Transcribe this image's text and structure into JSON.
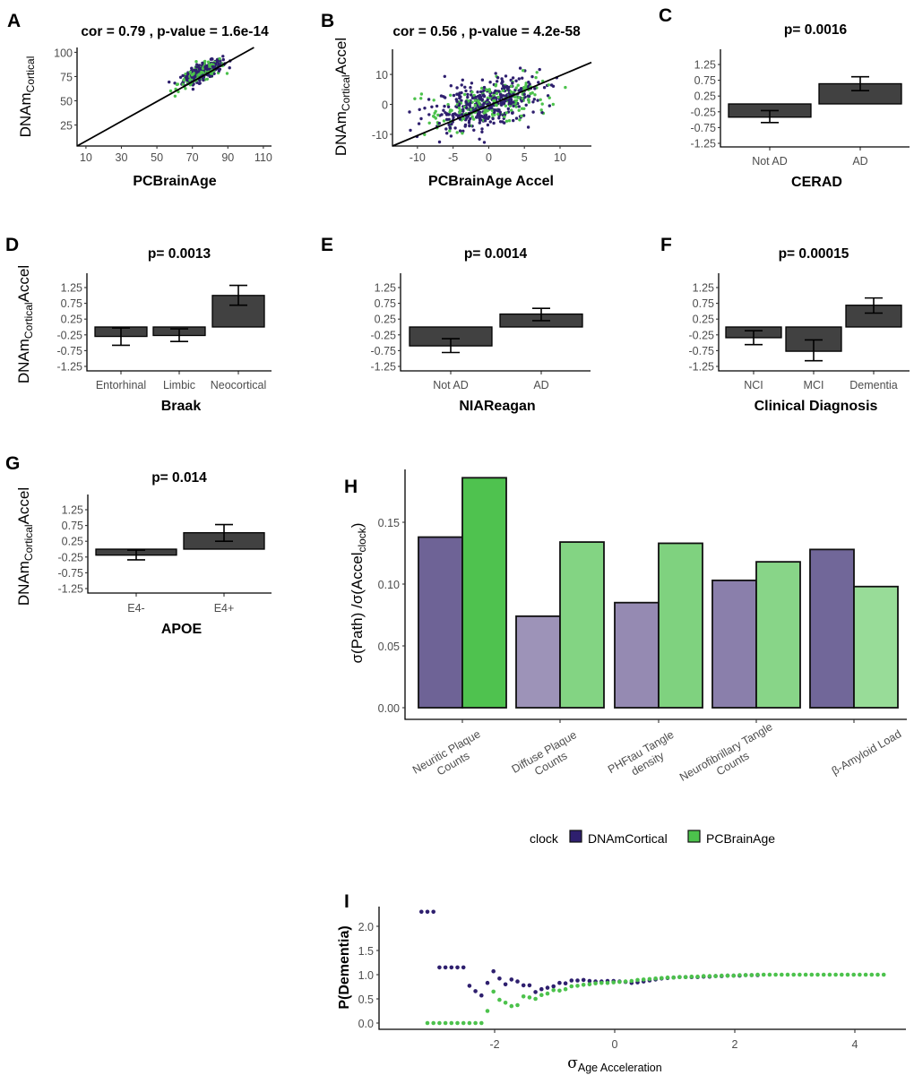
{
  "chart_data": [
    {
      "panel": "A",
      "type": "scatter",
      "title": "cor = 0.79 , p-value =  1.6e-14",
      "xlabel": "PCBrainAge",
      "ylabel": {
        "main": "DNAm",
        "sub": "Cortical",
        "suffix": ""
      },
      "xlim": [
        5,
        114.6
      ],
      "ylim": [
        3.3,
        105
      ],
      "xticks": [
        10,
        30,
        50,
        70,
        90,
        110
      ],
      "yticks": [
        25,
        50,
        75,
        100
      ],
      "fit_line": {
        "slope": 1.02,
        "intercept": -1.8
      },
      "series": [
        {
          "name": "DNAmCortical",
          "color": "#2e1f6e",
          "n": 300,
          "x_mean": 76,
          "x_sd": 5.5,
          "y_slope": 0.8,
          "y_center": 80,
          "y_noise_sd": 4
        },
        {
          "name": "PCBrainAge",
          "color": "#4cc24c",
          "n": 150,
          "x_mean": 75,
          "x_sd": 6.5,
          "y_slope": 0.8,
          "y_center": 78,
          "y_noise_sd": 4.5
        }
      ]
    },
    {
      "panel": "B",
      "type": "scatter",
      "title": "cor = 0.56 , p-value =  4.2e-58",
      "xlabel": "PCBrainAge Accel",
      "ylabel": {
        "main": "DNAm",
        "sub": "Cortical",
        "suffix": "Accel"
      },
      "xlim": [
        -13.5,
        14.4
      ],
      "ylim": [
        -13.9,
        18.4
      ],
      "xticks": [
        -10,
        -5,
        0,
        5,
        10
      ],
      "yticks": [
        -10,
        0,
        10
      ],
      "fit_line": {
        "slope": 1.0,
        "intercept": -0.4
      },
      "series": [
        {
          "name": "DNAmCortical",
          "color": "#2e1f6e",
          "n": 380,
          "x_mean": 0,
          "x_sd": 4,
          "y_slope": 0.65,
          "y_center": 0,
          "y_noise_sd": 3.8
        },
        {
          "name": "PCBrainAge",
          "color": "#4cc24c",
          "n": 190,
          "x_mean": 0,
          "x_sd": 4.5,
          "y_slope": 0.55,
          "y_center": 0,
          "y_noise_sd": 3.5
        }
      ]
    },
    {
      "panel": "C",
      "type": "bar",
      "title": "p= 0.0016",
      "xlabel": "CERAD",
      "categories": [
        "Not AD",
        "AD"
      ],
      "values": [
        -0.42,
        0.64
      ],
      "err_low": [
        -0.59,
        0.42
      ],
      "err_high": [
        -0.21,
        0.86
      ],
      "yticks": [
        1.25,
        0.75,
        0.25,
        -0.25,
        -0.75,
        -1.25
      ]
    },
    {
      "panel": "D",
      "type": "bar",
      "title": "p= 0.0013",
      "xlabel": "Braak",
      "ylabel": {
        "main": "DNAm",
        "sub": "Cortical",
        "suffix": "Accel"
      },
      "categories": [
        "Entorhinal",
        "Limbic",
        "Neocortical"
      ],
      "values": [
        -0.3,
        -0.27,
        1.0
      ],
      "err_low": [
        -0.58,
        -0.46,
        0.69
      ],
      "err_high": [
        -0.03,
        -0.06,
        1.32
      ],
      "yticks": [
        1.25,
        0.75,
        0.25,
        -0.25,
        -0.75,
        -1.25
      ]
    },
    {
      "panel": "E",
      "type": "bar",
      "title": "p= 0.0014",
      "xlabel": "NIAReagan",
      "categories": [
        "Not AD",
        "AD"
      ],
      "values": [
        -0.6,
        0.41
      ],
      "err_low": [
        -0.81,
        0.2
      ],
      "err_high": [
        -0.37,
        0.59
      ],
      "yticks": [
        1.25,
        0.75,
        0.25,
        -0.25,
        -0.75,
        -1.25
      ]
    },
    {
      "panel": "F",
      "type": "bar",
      "title": "p= 0.00015",
      "xlabel": "Clinical Diagnosis",
      "categories": [
        "NCI",
        "MCI",
        "Dementia"
      ],
      "values": [
        -0.34,
        -0.77,
        0.69
      ],
      "err_low": [
        -0.56,
        -1.07,
        0.44
      ],
      "err_high": [
        -0.12,
        -0.41,
        0.92
      ],
      "yticks": [
        1.25,
        0.75,
        0.25,
        -0.25,
        -0.75,
        -1.25
      ]
    },
    {
      "panel": "G",
      "type": "bar",
      "title": "p= 0.014",
      "xlabel": "APOE",
      "ylabel": {
        "main": "DNAm",
        "sub": "Cortical",
        "suffix": "Accel"
      },
      "categories": [
        "E4-",
        "E4+"
      ],
      "values": [
        -0.19,
        0.52
      ],
      "err_low": [
        -0.34,
        0.25
      ],
      "err_high": [
        -0.03,
        0.78
      ],
      "yticks": [
        1.25,
        0.75,
        0.25,
        -0.25,
        -0.75,
        -1.25
      ]
    },
    {
      "panel": "H",
      "type": "bar",
      "ylabel": {
        "main": "σ(Path) /σ(Accel",
        "sub": "clock",
        "suffix": ")"
      },
      "categories": [
        [
          "Neuritic Plaque",
          "Counts"
        ],
        [
          "Diffuse Plaque",
          "Counts"
        ],
        [
          "PHFtau Tangle",
          "density"
        ],
        [
          "Neurofibrillary Tangle",
          "Counts"
        ],
        [
          "β-Amyloid Load"
        ]
      ],
      "ylim": [
        0,
        0.193
      ],
      "yticks": [
        0.0,
        0.05,
        0.1,
        0.15
      ],
      "series": [
        {
          "name": "DNAmCortical",
          "values": [
            0.138,
            0.074,
            0.085,
            0.103,
            0.128
          ],
          "colors": [
            "#6e6396",
            "#9d93b8",
            "#958ab2",
            "#8a7fab",
            "#716799"
          ]
        },
        {
          "name": "PCBrainAge",
          "values": [
            0.186,
            0.134,
            0.133,
            0.118,
            0.098
          ],
          "colors": [
            "#4fc24f",
            "#83d483",
            "#7fd27f",
            "#88d588",
            "#98dc98"
          ]
        }
      ],
      "legend": {
        "title": "clock",
        "position": "bottom",
        "items": [
          {
            "label": "DNAmCortical",
            "color": "#2e1f6e"
          },
          {
            "label": "PCBrainAge",
            "color": "#4cc24c"
          }
        ]
      }
    },
    {
      "panel": "I",
      "type": "scatter",
      "ylabel": "P(Dementia)",
      "xlabel": {
        "main": "σ",
        "sub": "Age Acceleration"
      },
      "xlim": [
        -3.95,
        4.8
      ],
      "ylim": [
        -0.13,
        2.4
      ],
      "xticks": [
        -2,
        0,
        2,
        4
      ],
      "yticks": [
        0.0,
        0.5,
        1.0,
        1.5,
        2.0
      ],
      "series": [
        {
          "name": "DNAmCortical",
          "color": "#2e1f6e",
          "x_start": -3.22,
          "x_step": 0.1,
          "y": [
            2.3,
            2.3,
            2.3,
            1.15,
            1.15,
            1.15,
            1.15,
            1.15,
            0.77,
            0.66,
            0.57,
            0.83,
            1.07,
            0.92,
            0.8,
            0.9,
            0.86,
            0.78,
            0.78,
            0.64,
            0.7,
            0.73,
            0.76,
            0.83,
            0.82,
            0.88,
            0.88,
            0.89,
            0.87,
            0.86,
            0.86,
            0.87,
            0.87,
            0.86,
            0.85,
            0.83,
            0.84,
            0.86,
            0.88,
            0.9,
            0.92,
            0.93,
            0.94,
            0.95,
            0.95,
            0.95,
            0.95,
            0.96,
            0.96,
            0.97,
            0.97,
            0.98,
            0.98,
            0.98,
            0.99,
            0.99,
            0.99
          ]
        },
        {
          "name": "PCBrainAge",
          "color": "#4cc24c",
          "x_start": -3.12,
          "x_step": 0.1,
          "y": [
            0,
            0,
            0,
            0,
            0,
            0,
            0,
            0,
            0,
            0,
            0.25,
            0.65,
            0.48,
            0.42,
            0.35,
            0.37,
            0.55,
            0.53,
            0.5,
            0.58,
            0.61,
            0.68,
            0.67,
            0.7,
            0.76,
            0.77,
            0.79,
            0.8,
            0.82,
            0.83,
            0.83,
            0.84,
            0.85,
            0.86,
            0.87,
            0.89,
            0.9,
            0.91,
            0.92,
            0.93,
            0.94,
            0.94,
            0.95,
            0.95,
            0.96,
            0.96,
            0.97,
            0.97,
            0.97,
            0.98,
            0.98,
            0.98,
            0.99,
            0.99,
            0.99,
            1,
            1,
            1,
            1,
            1,
            1,
            1,
            1,
            1,
            1,
            1,
            1,
            1,
            1,
            1,
            1,
            1,
            1,
            1,
            1,
            1,
            1
          ]
        }
      ]
    }
  ]
}
